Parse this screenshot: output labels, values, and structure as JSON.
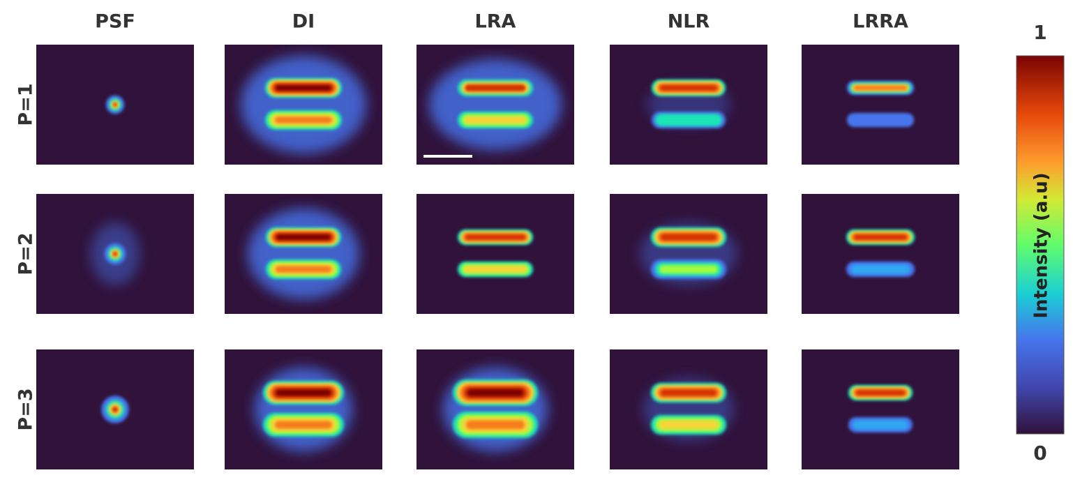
{
  "columns": [
    "PSF",
    "DI",
    "LRA",
    "NLR",
    "LRRA"
  ],
  "rows": [
    "P=1",
    "P=2",
    "P=3"
  ],
  "colorbar": {
    "max_label": "1",
    "min_label": "0",
    "label": "Intensity (a.u)"
  }
}
